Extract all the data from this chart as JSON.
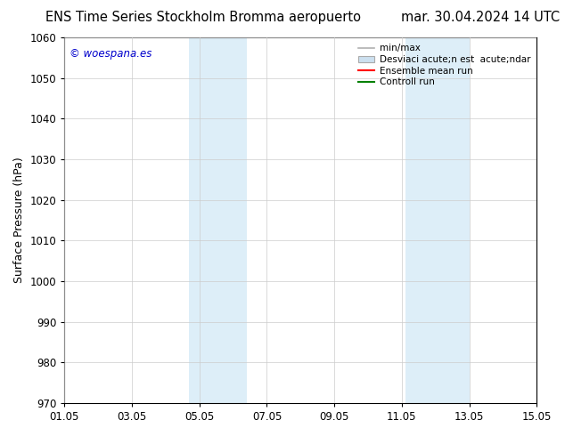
{
  "title_left": "ENS Time Series Stockholm Bromma aeropuerto",
  "title_right": "mar. 30.04.2024 14 UTC",
  "ylabel": "Surface Pressure (hPa)",
  "watermark": "© woespana.es",
  "watermark_color": "#0000cc",
  "ylim": [
    970,
    1060
  ],
  "yticks": [
    970,
    980,
    990,
    1000,
    1010,
    1020,
    1030,
    1040,
    1050,
    1060
  ],
  "xlim_start": 0,
  "xlim_end": 14,
  "xtick_labels": [
    "01.05",
    "03.05",
    "05.05",
    "07.05",
    "09.05",
    "11.05",
    "13.05",
    "15.05"
  ],
  "xtick_positions": [
    0,
    2,
    4,
    6,
    8,
    10,
    12,
    14
  ],
  "shaded_regions": [
    {
      "xmin": 3.7,
      "xmax": 5.4,
      "color": "#ddeef8"
    },
    {
      "xmin": 10.1,
      "xmax": 12.0,
      "color": "#ddeef8"
    }
  ],
  "legend_entries": [
    {
      "label": "min/max",
      "color": "#b0b0b0",
      "lw": 1.2,
      "style": "line"
    },
    {
      "label": "Desviaci acute;n est  acute;ndar",
      "color": "#cce0f0",
      "style": "patch"
    },
    {
      "label": "Ensemble mean run",
      "color": "#ff0000",
      "lw": 1.5,
      "style": "line"
    },
    {
      "label": "Controll run",
      "color": "#008000",
      "lw": 1.5,
      "style": "line"
    }
  ],
  "bg_color": "#ffffff",
  "plot_bg_color": "#ffffff",
  "grid_color": "#cccccc",
  "title_fontsize": 10.5,
  "tick_fontsize": 8.5,
  "ylabel_fontsize": 9
}
